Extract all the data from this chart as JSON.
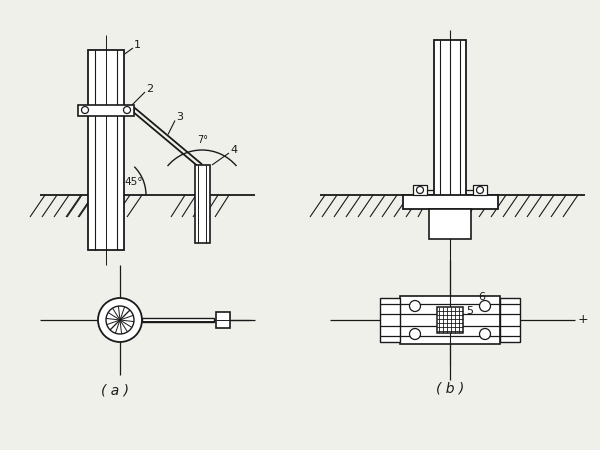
{
  "bg_color": "#f0f0eb",
  "line_color": "#1a1a1a",
  "fig_width": 6.0,
  "fig_height": 4.5,
  "label_a": "( a )",
  "label_b": "( b )",
  "angle_45": "45°",
  "angle_7": "7°"
}
